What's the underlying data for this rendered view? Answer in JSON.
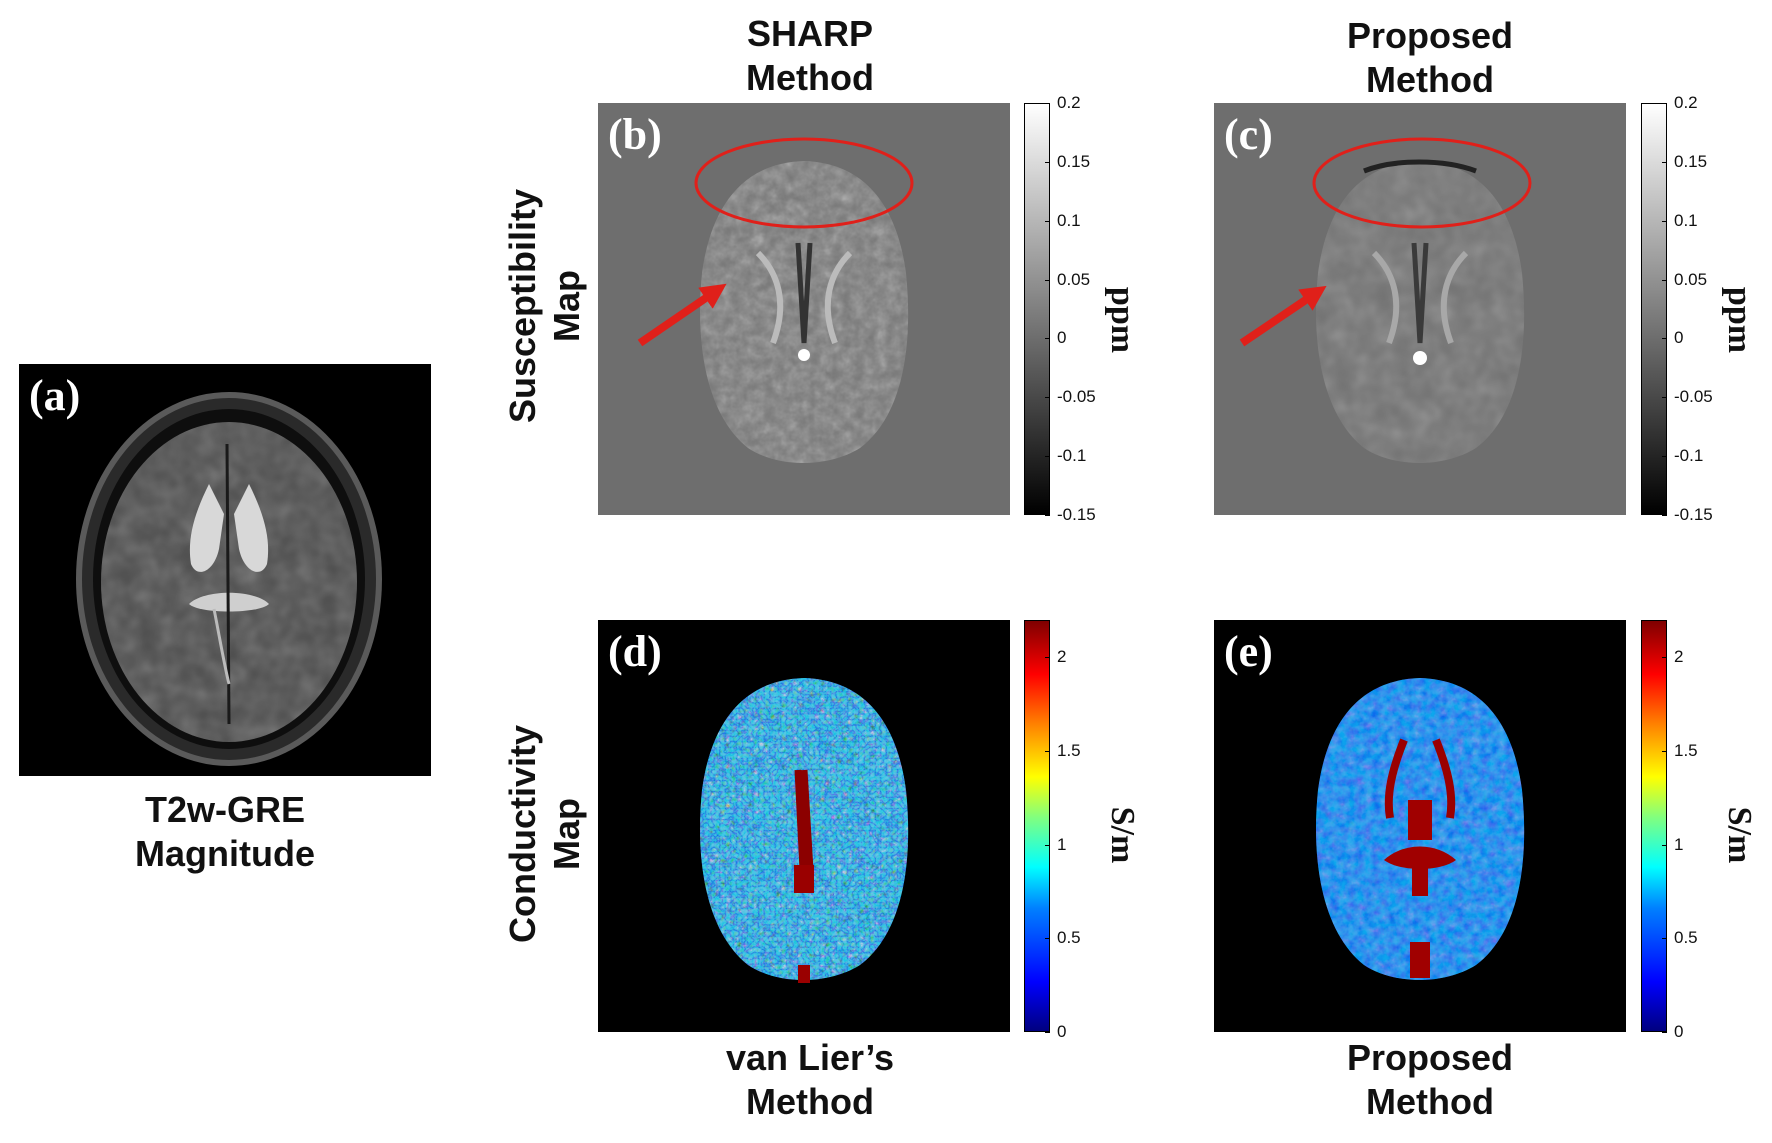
{
  "column_titles": {
    "sharp": [
      "SHARP",
      "Method"
    ],
    "proposed_top": [
      "Proposed",
      "Method"
    ],
    "van_lier": [
      "van Lier’s",
      "Method"
    ],
    "proposed_bottom": [
      "Proposed",
      "Method"
    ]
  },
  "row_labels": {
    "susceptibility": [
      "Susceptibility",
      "Map"
    ],
    "conductivity": [
      "Conductivity",
      "Map"
    ]
  },
  "panel_a": {
    "letter": "(a)",
    "caption": [
      "T2w-GRE",
      "Magnitude"
    ]
  },
  "panels": {
    "b": "(b)",
    "c": "(c)",
    "d": "(d)",
    "e": "(e)"
  },
  "susceptibility_colorbar": {
    "unit": "ppm",
    "ticks": [
      "0.2",
      "0.15",
      "0.1",
      "0.05",
      "0",
      "-0.05",
      "-0.1",
      "-0.15"
    ],
    "range": [
      -0.15,
      0.2
    ]
  },
  "conductivity_colorbar": {
    "unit": "S/m",
    "ticks": [
      "2",
      "1.5",
      "1",
      "0.5",
      "0"
    ],
    "range": [
      0,
      2.2
    ]
  },
  "colors": {
    "annotation_red": "#e0201a",
    "susceptibility_background": "#6e6e6e",
    "conductivity_background": "#000000"
  }
}
